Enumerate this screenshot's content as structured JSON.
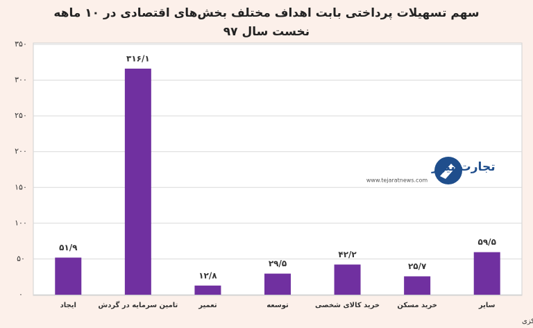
{
  "chart_data": {
    "type": "bar",
    "title": "سهم تسهیلات پرداختی بابت اهداف مختلف بخش‌های اقتصادی در ۱۰ ماهه نخست سال ۹۷",
    "categories": [
      "ایجاد",
      "تامین سرمایه در گردش",
      "تعمیر",
      "توسعه",
      "خرید کالای شخصی",
      "خرید مسکن",
      "سایر"
    ],
    "values": [
      51.9,
      316.1,
      12.8,
      29.5,
      42.2,
      25.7,
      59.5
    ],
    "value_labels": [
      "۵۱/۹",
      "۳۱۶/۱",
      "۱۲/۸",
      "۲۹/۵",
      "۴۲/۲",
      "۲۵/۷",
      "۵۹/۵"
    ],
    "color": "#7030a0",
    "ylim": [
      0,
      350
    ],
    "yticks": [
      {
        "value": 0,
        "label": "۰"
      },
      {
        "value": 50,
        "label": "۵۰"
      },
      {
        "value": 100,
        "label": "۱۰۰"
      },
      {
        "value": 150,
        "label": "۱۵۰"
      },
      {
        "value": 200,
        "label": "۲۰۰"
      },
      {
        "value": 250,
        "label": "۲۵۰"
      },
      {
        "value": 300,
        "label": "۳۰۰"
      },
      {
        "value": 350,
        "label": "۳۵۰"
      }
    ],
    "grid": true,
    "source": "منبع: بانک مرکزی",
    "watermark": {
      "name": "تجارت نیوز",
      "url": "www.tejaratnews.com"
    }
  }
}
